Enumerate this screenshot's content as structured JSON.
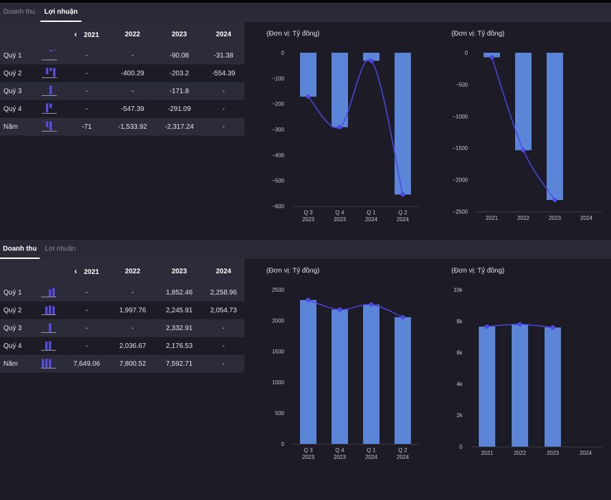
{
  "accent_bar": "#5b85d6",
  "accent_line": "#4e47e6",
  "spark_color": "#5a4fe8",
  "profit": {
    "tabs": [
      {
        "label": "Doanh thu",
        "active": false
      },
      {
        "label": "Lợi nhuận",
        "active": true
      }
    ],
    "table": {
      "nav_icon": "chevron-left",
      "years": [
        "2021",
        "2022",
        "2023",
        "2024"
      ],
      "rows": [
        {
          "label": "Quý 1",
          "values": [
            "-",
            "-",
            "-90.08",
            "-31.38"
          ],
          "spark": [
            0,
            0,
            0.16,
            0.06
          ]
        },
        {
          "label": "Quý 2",
          "values": [
            "-",
            "-400.29",
            "-203.2",
            "-554.39"
          ],
          "spark": [
            0,
            0.72,
            0.37,
            1.0
          ]
        },
        {
          "label": "Quý 3",
          "values": [
            "-",
            "-",
            "-171.8",
            "-"
          ],
          "spark": [
            0,
            0,
            1.0,
            0
          ]
        },
        {
          "label": "Quý 4",
          "values": [
            "-",
            "-547.39",
            "-291.09",
            "-"
          ],
          "spark": [
            0,
            1.0,
            0.53,
            0
          ]
        },
        {
          "label": "Năm",
          "values": [
            "-71",
            "-1,533.92",
            "-2,317.24",
            "-"
          ],
          "spark": [
            0.03,
            0.66,
            1.0,
            0
          ]
        }
      ]
    },
    "chart_data": [
      {
        "type": "bar",
        "title": "(Đơn vị: Tỷ đồng)",
        "categories": [
          [
            "Q 3",
            "2023"
          ],
          [
            "Q 4",
            "2023"
          ],
          [
            "Q 1",
            "2024"
          ],
          [
            "Q 2",
            "2024"
          ]
        ],
        "values": [
          -171.8,
          -291.09,
          -31.38,
          -554.39
        ],
        "line_overlay": true,
        "ylim": [
          -600,
          0
        ],
        "yticks": [
          0,
          -100,
          -200,
          -300,
          -400,
          -500,
          -600
        ],
        "ytick_labels": [
          "0",
          "−100",
          "−200",
          "−300",
          "−400",
          "−500",
          "−600"
        ]
      },
      {
        "type": "bar",
        "title": "(Đơn vị: Tỷ đồng)",
        "categories": [
          [
            "2021"
          ],
          [
            "2022"
          ],
          [
            "2023"
          ],
          [
            "2024"
          ]
        ],
        "values": [
          -71,
          -1533.92,
          -2317.24,
          null
        ],
        "line_overlay": true,
        "ylim": [
          -2500,
          0
        ],
        "yticks": [
          0,
          -500,
          -1000,
          -1500,
          -2000,
          -2500
        ],
        "ytick_labels": [
          "0",
          "−500",
          "−1000",
          "−1500",
          "−2000",
          "−2500"
        ]
      }
    ]
  },
  "revenue": {
    "tabs": [
      {
        "label": "Doanh thu",
        "active": true
      },
      {
        "label": "Lợi nhuận",
        "active": false
      }
    ],
    "table": {
      "nav_icon": "chevron-left",
      "years": [
        "2021",
        "2022",
        "2023",
        "2024"
      ],
      "rows": [
        {
          "label": "Quý 1",
          "values": [
            "-",
            "-",
            "1,852.46",
            "2,258.96"
          ],
          "spark": [
            0,
            0,
            0.82,
            1.0
          ]
        },
        {
          "label": "Quý 2",
          "values": [
            "-",
            "1,997.76",
            "2,245.91",
            "2,054.73"
          ],
          "spark": [
            0,
            0.89,
            1.0,
            0.91
          ]
        },
        {
          "label": "Quý 3",
          "values": [
            "-",
            "-",
            "2,332.91",
            "-"
          ],
          "spark": [
            0,
            0,
            1.0,
            0
          ]
        },
        {
          "label": "Quý 4",
          "values": [
            "-",
            "2,036.67",
            "2,176.53",
            "-"
          ],
          "spark": [
            0,
            0.94,
            1.0,
            0
          ]
        },
        {
          "label": "Năm",
          "values": [
            "7,649.06",
            "7,800.52",
            "7,592.71",
            "-"
          ],
          "spark": [
            0.98,
            1.0,
            0.97,
            0
          ]
        }
      ]
    },
    "chart_data": [
      {
        "type": "bar",
        "title": "(Đơn vị: Tỷ đồng)",
        "categories": [
          [
            "Q 3",
            "2023"
          ],
          [
            "Q 4",
            "2023"
          ],
          [
            "Q 1",
            "2024"
          ],
          [
            "Q 2",
            "2024"
          ]
        ],
        "values": [
          2332.91,
          2176.53,
          2258.96,
          2054.73
        ],
        "line_overlay": true,
        "ylim": [
          0,
          2500
        ],
        "yticks": [
          0,
          500,
          1000,
          1500,
          2000,
          2500
        ],
        "ytick_labels": [
          "0",
          "500",
          "1000",
          "1500",
          "2000",
          "2500"
        ]
      },
      {
        "type": "bar",
        "title": "(Đơn vị: Tỷ đồng)",
        "categories": [
          [
            "2021"
          ],
          [
            "2022"
          ],
          [
            "2023"
          ],
          [
            "2024"
          ]
        ],
        "values": [
          7649.06,
          7800.52,
          7592.71,
          null
        ],
        "line_overlay": true,
        "ylim": [
          0,
          10000
        ],
        "yticks": [
          0,
          2000,
          4000,
          6000,
          8000,
          10000
        ],
        "ytick_labels": [
          "0",
          "2k",
          "4k",
          "6k",
          "8k",
          "10k"
        ]
      }
    ]
  }
}
